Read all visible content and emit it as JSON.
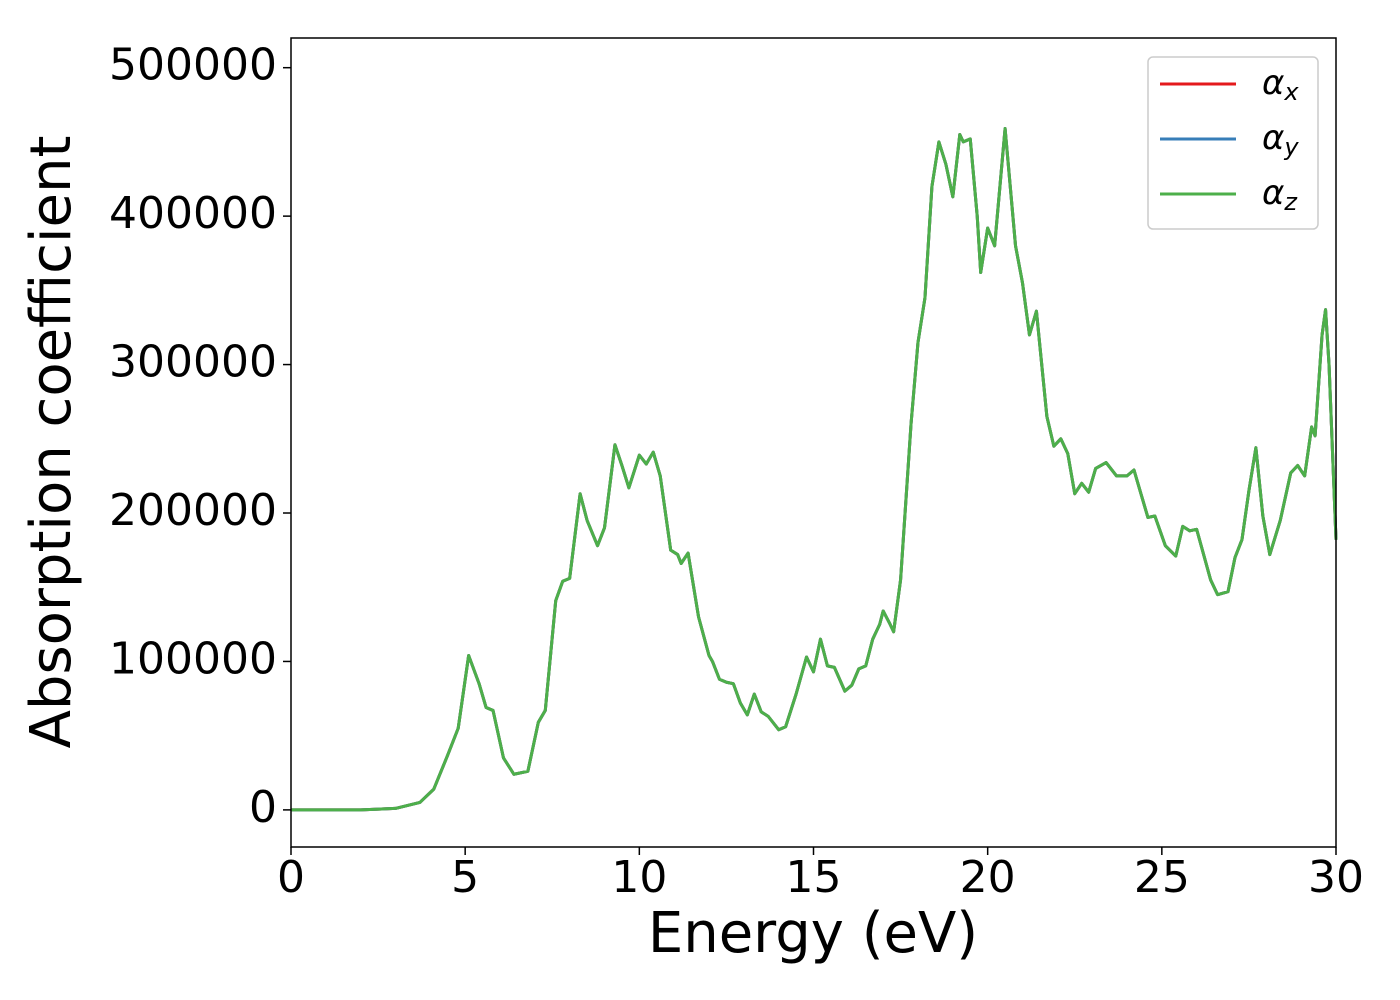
{
  "chart_data": {
    "type": "line",
    "x_label": "Energy (eV)",
    "y_label": "Absorption coefficient",
    "x": [
      0,
      2,
      3,
      3.7,
      4.1,
      4.5,
      4.8,
      5.1,
      5.4,
      5.6,
      5.8,
      6.1,
      6.4,
      6.8,
      7.1,
      7.3,
      7.6,
      7.8,
      8.0,
      8.3,
      8.5,
      8.8,
      9.0,
      9.3,
      9.5,
      9.7,
      10.0,
      10.2,
      10.4,
      10.6,
      10.9,
      11.1,
      11.2,
      11.4,
      11.7,
      12.0,
      12.1,
      12.3,
      12.5,
      12.7,
      12.9,
      13.1,
      13.3,
      13.5,
      13.7,
      14.0,
      14.2,
      14.5,
      14.8,
      15.0,
      15.2,
      15.4,
      15.6,
      15.9,
      16.1,
      16.3,
      16.5,
      16.7,
      16.9,
      17.0,
      17.2,
      17.3,
      17.5,
      17.8,
      18.0,
      18.2,
      18.4,
      18.6,
      18.8,
      19.0,
      19.2,
      19.3,
      19.5,
      19.7,
      19.8,
      20.0,
      20.2,
      20.5,
      20.8,
      21.0,
      21.2,
      21.4,
      21.7,
      21.9,
      22.1,
      22.3,
      22.5,
      22.7,
      22.9,
      23.1,
      23.4,
      23.7,
      24.0,
      24.2,
      24.6,
      24.8,
      25.1,
      25.4,
      25.6,
      25.8,
      26.0,
      26.4,
      26.6,
      26.9,
      27.1,
      27.3,
      27.5,
      27.7,
      27.9,
      28.1,
      28.4,
      28.7,
      28.9,
      29.1,
      29.3,
      29.4,
      29.6,
      29.7,
      29.8,
      30.0
    ],
    "series": [
      {
        "name": "αx",
        "color": "#e41a1c",
        "values": [
          0,
          0,
          1000,
          5000,
          14000,
          37000,
          55000,
          104000,
          85000,
          69000,
          67000,
          35000,
          24000,
          26000,
          59000,
          67000,
          141000,
          154000,
          156000,
          213000,
          195000,
          178000,
          190000,
          246000,
          232000,
          217000,
          239000,
          233000,
          241000,
          225000,
          175000,
          172000,
          166000,
          173000,
          130000,
          104000,
          100000,
          88000,
          86000,
          85000,
          72000,
          64000,
          78000,
          66000,
          63000,
          54000,
          56000,
          78000,
          103000,
          93000,
          115000,
          97000,
          96000,
          80000,
          84000,
          95000,
          97000,
          115000,
          125000,
          134000,
          125000,
          120000,
          155000,
          260000,
          315000,
          345000,
          420000,
          450000,
          435000,
          413000,
          455000,
          450000,
          452000,
          400000,
          362000,
          392000,
          380000,
          459000,
          380000,
          355000,
          320000,
          336000,
          265000,
          245000,
          250000,
          240000,
          213000,
          220000,
          214000,
          230000,
          234000,
          225000,
          225000,
          229000,
          197000,
          198000,
          178000,
          171000,
          191000,
          188000,
          189000,
          155000,
          145000,
          147000,
          170000,
          182000,
          215000,
          244000,
          198000,
          172000,
          195000,
          227000,
          232000,
          225000,
          258000,
          252000,
          320000,
          337000,
          300000,
          182000
        ]
      },
      {
        "name": "αy",
        "color": "#377eb8",
        "values": [
          0,
          0,
          1000,
          5000,
          14000,
          37000,
          55000,
          104000,
          85000,
          69000,
          67000,
          35000,
          24000,
          26000,
          59000,
          67000,
          141000,
          154000,
          156000,
          213000,
          195000,
          178000,
          190000,
          246000,
          232000,
          217000,
          239000,
          233000,
          241000,
          225000,
          175000,
          172000,
          166000,
          173000,
          130000,
          104000,
          100000,
          88000,
          86000,
          85000,
          72000,
          64000,
          78000,
          66000,
          63000,
          54000,
          56000,
          78000,
          103000,
          93000,
          115000,
          97000,
          96000,
          80000,
          84000,
          95000,
          97000,
          115000,
          125000,
          134000,
          125000,
          120000,
          155000,
          260000,
          315000,
          345000,
          420000,
          450000,
          435000,
          413000,
          455000,
          450000,
          452000,
          400000,
          362000,
          392000,
          380000,
          459000,
          380000,
          355000,
          320000,
          336000,
          265000,
          245000,
          250000,
          240000,
          213000,
          220000,
          214000,
          230000,
          234000,
          225000,
          225000,
          229000,
          197000,
          198000,
          178000,
          171000,
          191000,
          188000,
          189000,
          155000,
          145000,
          147000,
          170000,
          182000,
          215000,
          244000,
          198000,
          172000,
          195000,
          227000,
          232000,
          225000,
          258000,
          252000,
          320000,
          337000,
          300000,
          182000
        ]
      },
      {
        "name": "αz",
        "color": "#4daf4a",
        "values": [
          0,
          0,
          1000,
          5000,
          14000,
          37000,
          55000,
          104000,
          85000,
          69000,
          67000,
          35000,
          24000,
          26000,
          59000,
          67000,
          141000,
          154000,
          156000,
          213000,
          195000,
          178000,
          190000,
          246000,
          232000,
          217000,
          239000,
          233000,
          241000,
          225000,
          175000,
          172000,
          166000,
          173000,
          130000,
          104000,
          100000,
          88000,
          86000,
          85000,
          72000,
          64000,
          78000,
          66000,
          63000,
          54000,
          56000,
          78000,
          103000,
          93000,
          115000,
          97000,
          96000,
          80000,
          84000,
          95000,
          97000,
          115000,
          125000,
          134000,
          125000,
          120000,
          155000,
          260000,
          315000,
          345000,
          420000,
          450000,
          435000,
          413000,
          455000,
          450000,
          452000,
          400000,
          362000,
          392000,
          380000,
          459000,
          380000,
          355000,
          320000,
          336000,
          265000,
          245000,
          250000,
          240000,
          213000,
          220000,
          214000,
          230000,
          234000,
          225000,
          225000,
          229000,
          197000,
          198000,
          178000,
          171000,
          191000,
          188000,
          189000,
          155000,
          145000,
          147000,
          170000,
          182000,
          215000,
          244000,
          198000,
          172000,
          195000,
          227000,
          232000,
          225000,
          258000,
          252000,
          320000,
          337000,
          300000,
          182000
        ]
      }
    ],
    "xlim": [
      0,
      30
    ],
    "xticks": [
      0,
      5,
      10,
      15,
      20,
      25,
      30
    ],
    "ylim": [
      -25000,
      520000
    ],
    "yticks": [
      0,
      100000,
      200000,
      300000,
      400000,
      500000
    ],
    "grid": false,
    "legend": "upper right"
  }
}
